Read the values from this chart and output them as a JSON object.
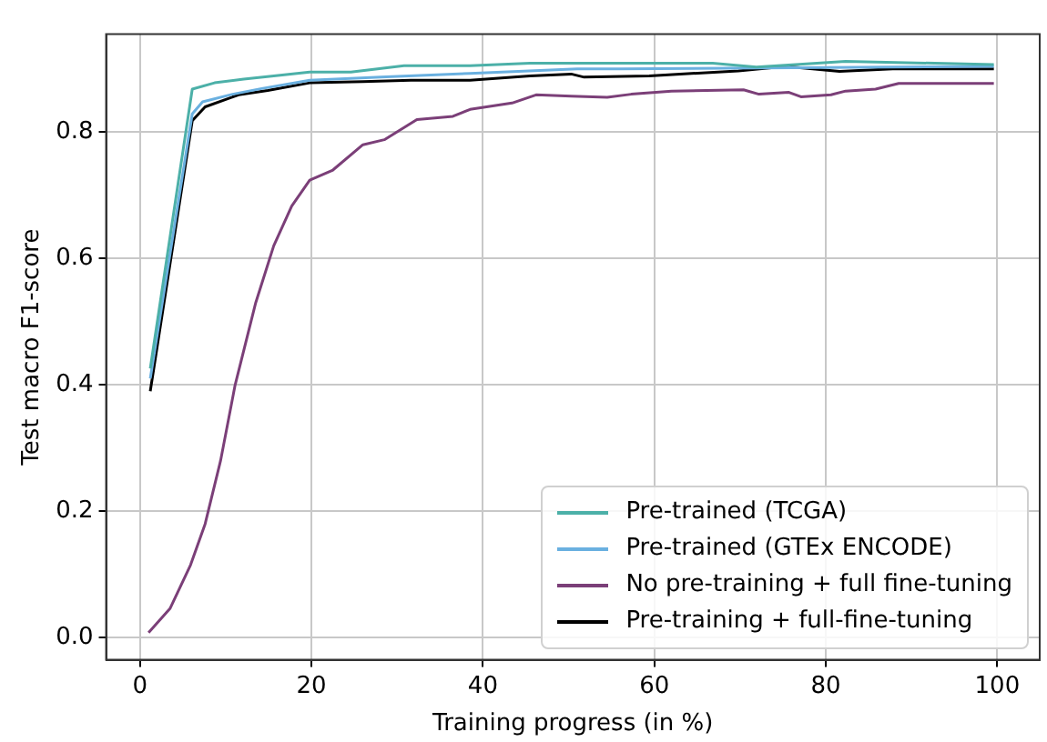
{
  "chart_data": {
    "type": "line",
    "xlabel": "Training progress (in %)",
    "ylabel": "Test macro F1-score",
    "xlim": [
      -3.95,
      104.95
    ],
    "ylim": [
      -0.035,
      0.955
    ],
    "xticks": [
      0,
      20,
      40,
      60,
      80,
      100
    ],
    "yticks": [
      {
        "value": 0,
        "label": "0.0"
      },
      {
        "value": 0.2,
        "label": "0.2"
      },
      {
        "value": 0.4,
        "label": "0.4"
      },
      {
        "value": 0.6,
        "label": "0.6"
      },
      {
        "value": 0.8,
        "label": "0.8"
      }
    ],
    "grid": true,
    "legend": "bottom right",
    "marker": "none",
    "line_style": "solid",
    "series": [
      {
        "name": "Pre-trained (TCGA)",
        "color": "#4cb0a8",
        "x": [
          1.2,
          6.1,
          8.7,
          12.1,
          15.6,
          19.8,
          24.6,
          30.8,
          38.5,
          45.5,
          51,
          66.8,
          71.9,
          82.3,
          99.6
        ],
        "values": [
          0.426,
          0.868,
          0.878,
          0.884,
          0.889,
          0.895,
          0.895,
          0.905,
          0.905,
          0.909,
          0.909,
          0.909,
          0.903,
          0.912,
          0.907
        ]
      },
      {
        "name": "Pre-trained (GTEx ENCODE)",
        "color": "#6ab0e0",
        "x": [
          1.2,
          6.1,
          7.3,
          10.8,
          14.2,
          19.8,
          28.1,
          38.5,
          51,
          55.9,
          99.6
        ],
        "values": [
          0.41,
          0.829,
          0.848,
          0.86,
          0.869,
          0.882,
          0.887,
          0.893,
          0.9,
          0.9,
          0.904
        ]
      },
      {
        "name": "No pre-training + full fine-tuning",
        "color": "#7b3f78",
        "x": [
          1,
          3.5,
          5.9,
          7.6,
          9.4,
          11.1,
          13.5,
          15.6,
          17.7,
          19.8,
          22.5,
          26,
          28.5,
          32.3,
          36.5,
          38.5,
          43.4,
          46.2,
          50.3,
          54.5,
          57.3,
          62,
          70.4,
          72.2,
          75.7,
          77.1,
          80.6,
          82.3,
          85.8,
          88.5,
          99.6
        ],
        "values": [
          0.008,
          0.046,
          0.115,
          0.18,
          0.28,
          0.4,
          0.53,
          0.62,
          0.683,
          0.724,
          0.74,
          0.78,
          0.788,
          0.82,
          0.825,
          0.836,
          0.846,
          0.859,
          0.857,
          0.855,
          0.86,
          0.865,
          0.867,
          0.86,
          0.863,
          0.856,
          0.859,
          0.865,
          0.868,
          0.877,
          0.877
        ]
      },
      {
        "name": "Pre-training + full-fine-tuning",
        "color": "#000000",
        "x": [
          1.2,
          6.1,
          7.6,
          11.5,
          14.9,
          19.8,
          26,
          31.6,
          38.5,
          45.5,
          50.3,
          51.8,
          59.4,
          69.8,
          75.3,
          81.6,
          87.8,
          99.6
        ],
        "values": [
          0.39,
          0.818,
          0.84,
          0.859,
          0.866,
          0.878,
          0.88,
          0.882,
          0.882,
          0.889,
          0.892,
          0.887,
          0.889,
          0.897,
          0.904,
          0.896,
          0.9,
          0.9
        ]
      }
    ]
  }
}
